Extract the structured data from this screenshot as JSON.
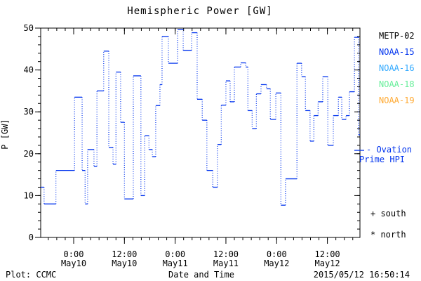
{
  "title": "Hemispheric Power [GW]",
  "ylabel": "P [GW]",
  "xlabel": "Date and Time",
  "footer": {
    "left": "Plot: CCMC",
    "right": "2015/05/12 16:50:14"
  },
  "legend": [
    {
      "label": "METP-02",
      "color": "#000000"
    },
    {
      "label": "NOAA-15",
      "color": "#0033ee"
    },
    {
      "label": "NOAA-16",
      "color": "#33aaff"
    },
    {
      "label": "NOAA-18",
      "color": "#66ee99"
    },
    {
      "label": "NOAA-19",
      "color": "#ffaa33"
    }
  ],
  "annotations": {
    "ovation_line1": "- Ovation",
    "ovation_line2": "Prime HPI",
    "ovation_color": "#0033ee",
    "ovation_sample_y_gw": 20.8,
    "south": "+ south",
    "north": "* north"
  },
  "chart_data": {
    "type": "line",
    "style": "step-dotted-risers",
    "series_name": "Ovation Prime HPI",
    "line_color": "#0033ee",
    "axis_color": "#000000",
    "grid": false,
    "ylim": [
      0,
      50
    ],
    "y_ticks": [
      0,
      10,
      20,
      30,
      40,
      50
    ],
    "y_minor_interval_gw": 2,
    "xlim_hours_from_may10": [
      -7.8,
      67.7
    ],
    "x_minor_interval_hours": 2,
    "x_ticks": [
      {
        "t": 0,
        "time": "0:00",
        "date": "May10"
      },
      {
        "t": 12,
        "time": "12:00",
        "date": "May10"
      },
      {
        "t": 24,
        "time": "0:00",
        "date": "May11"
      },
      {
        "t": 36,
        "time": "12:00",
        "date": "May11"
      },
      {
        "t": 48,
        "time": "0:00",
        "date": "May12"
      },
      {
        "t": 60,
        "time": "12:00",
        "date": "May12"
      }
    ],
    "points_t_hours_vs_gw": [
      [
        -7.8,
        12
      ],
      [
        -7.0,
        8
      ],
      [
        -4.2,
        16
      ],
      [
        0.2,
        33.5
      ],
      [
        2.0,
        16
      ],
      [
        2.7,
        8
      ],
      [
        3.3,
        21
      ],
      [
        4.8,
        17
      ],
      [
        5.5,
        35
      ],
      [
        7.1,
        44.5
      ],
      [
        8.3,
        21.5
      ],
      [
        9.3,
        17.5
      ],
      [
        10.0,
        39.5
      ],
      [
        11.1,
        27.5
      ],
      [
        12.0,
        9.2
      ],
      [
        14.1,
        38.6
      ],
      [
        15.9,
        10
      ],
      [
        16.8,
        24.3
      ],
      [
        17.8,
        21
      ],
      [
        18.6,
        19.3
      ],
      [
        19.4,
        31.5
      ],
      [
        20.4,
        36.5
      ],
      [
        20.9,
        48
      ],
      [
        22.4,
        41.6
      ],
      [
        24.6,
        49.7
      ],
      [
        25.9,
        44.7
      ],
      [
        27.9,
        48.9
      ],
      [
        29.2,
        33
      ],
      [
        30.4,
        28
      ],
      [
        31.5,
        16
      ],
      [
        32.9,
        12
      ],
      [
        34.0,
        22.2
      ],
      [
        34.9,
        31.6
      ],
      [
        36.0,
        37.4
      ],
      [
        37.0,
        32.4
      ],
      [
        38.0,
        40.7
      ],
      [
        39.5,
        41.7
      ],
      [
        40.7,
        40.7
      ],
      [
        41.2,
        30.3
      ],
      [
        42.2,
        26
      ],
      [
        43.2,
        34.3
      ],
      [
        44.3,
        36.5
      ],
      [
        45.6,
        35.5
      ],
      [
        46.5,
        28.2
      ],
      [
        47.8,
        34.5
      ],
      [
        49.0,
        7.7
      ],
      [
        50.1,
        14
      ],
      [
        52.8,
        41.6
      ],
      [
        53.9,
        38.4
      ],
      [
        54.8,
        30.3
      ],
      [
        55.9,
        23
      ],
      [
        56.8,
        29.1
      ],
      [
        57.8,
        32.4
      ],
      [
        58.9,
        38.4
      ],
      [
        60.1,
        22
      ],
      [
        61.4,
        29.1
      ],
      [
        62.6,
        33.5
      ],
      [
        63.4,
        28.2
      ],
      [
        64.4,
        29.1
      ],
      [
        65.2,
        34.8
      ],
      [
        66.4,
        47.8
      ],
      [
        67.4,
        24.5
      ]
    ]
  }
}
